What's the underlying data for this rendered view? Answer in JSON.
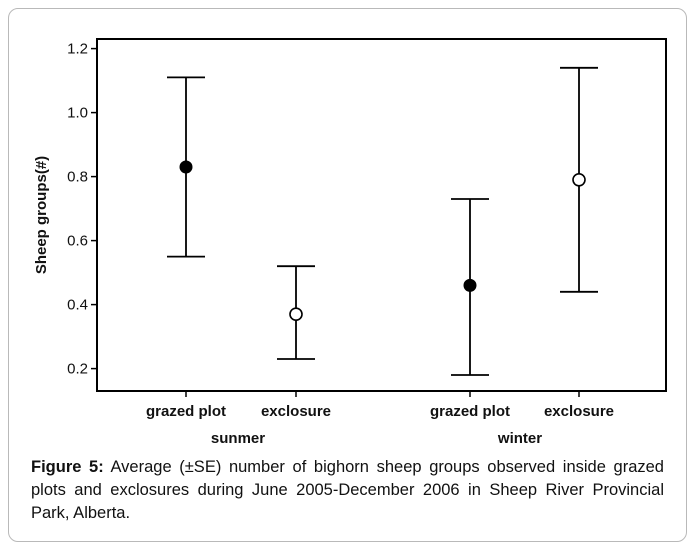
{
  "chart_data": {
    "type": "scatter",
    "ylabel": "Sheep groups(#)",
    "ylim": [
      0.13,
      1.23
    ],
    "yticks": [
      "0.2",
      "0.4",
      "0.6",
      "0.8",
      "1.0",
      "1.2"
    ],
    "grid": false,
    "groups": [
      {
        "label": "sunmer",
        "points": [
          {
            "category": "grazed plot",
            "marker": "filled-circle",
            "mean": 0.83,
            "upper": 1.11,
            "lower": 0.55
          },
          {
            "category": "exclosure",
            "marker": "crossed-circle",
            "mean": 0.37,
            "upper": 0.52,
            "lower": 0.23
          }
        ]
      },
      {
        "label": "winter",
        "points": [
          {
            "category": "grazed plot",
            "marker": "filled-circle",
            "mean": 0.46,
            "upper": 0.73,
            "lower": 0.18
          },
          {
            "category": "exclosure",
            "marker": "crossed-circle",
            "mean": 0.79,
            "upper": 1.14,
            "lower": 0.44
          }
        ]
      }
    ]
  },
  "caption": {
    "label": "Figure 5:",
    "text": "Average (±SE) number of bighorn sheep groups observed inside grazed plots and exclosures during June 2005-December 2006 in Sheep River Provincial Park, Alberta."
  }
}
